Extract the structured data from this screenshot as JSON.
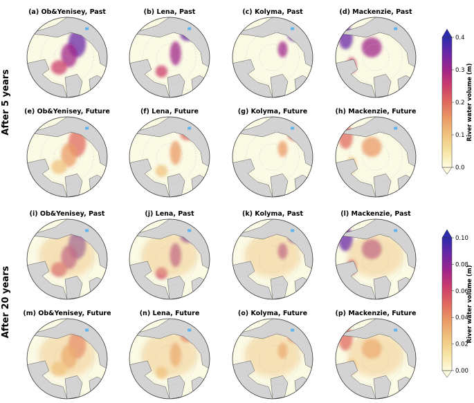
{
  "row_labels": [
    "After 5 years",
    "After 20 years"
  ],
  "panels": [
    {
      "title": "(a) Ob&Yenisey, Past",
      "river": "ob"
    },
    {
      "title": "(b) Lena, Past",
      "river": "lena"
    },
    {
      "title": "(c) Kolyma, Past",
      "river": "kolyma"
    },
    {
      "title": "(d) Mackenzie, Past",
      "river": "mackenzie"
    },
    {
      "title": "(e) Ob&Yenisey, Future",
      "river": "ob"
    },
    {
      "title": "(f) Lena, Future",
      "river": "lena"
    },
    {
      "title": "(g) Kolyma, Future",
      "river": "kolyma"
    },
    {
      "title": "(h) Mackenzie, Future",
      "river": "mackenzie"
    },
    {
      "title": "(i) Ob&Yenisey, Past",
      "river": "ob"
    },
    {
      "title": "(j) Lena, Past",
      "river": "lena"
    },
    {
      "title": "(k) Kolyma, Past",
      "river": "kolyma"
    },
    {
      "title": "(l) Mackenzie, Past",
      "river": "mackenzie"
    },
    {
      "title": "(m) Ob&Yenisey, Future",
      "river": "ob"
    },
    {
      "title": "(n) Lena, Future",
      "river": "lena"
    },
    {
      "title": "(o) Kolyma, Future",
      "river": "kolyma"
    },
    {
      "title": "(p) Mackenzie, Future",
      "river": "mackenzie"
    }
  ],
  "colorbars": [
    {
      "label": "River water volume (m)",
      "ticks": [
        "0.0",
        "0.1",
        "0.2",
        "0.3",
        "0.4"
      ],
      "min": 0.0,
      "max": 0.4
    },
    {
      "label": "River water volume (m)",
      "ticks": [
        "0.00",
        "0.02",
        "0.04",
        "0.06",
        "0.08",
        "0.10"
      ],
      "min": 0.0,
      "max": 0.1
    }
  ],
  "colors": {
    "ocean": "#fbfae5",
    "land": "#d3d3d3",
    "ice_shelf": "#5fb4ee",
    "colormap": [
      "#fffce0",
      "#f6e3a2",
      "#f0c37e",
      "#ea9a66",
      "#e06a5e",
      "#cc3e6b",
      "#a1258a",
      "#6b27a6",
      "#2d2bae"
    ]
  }
}
